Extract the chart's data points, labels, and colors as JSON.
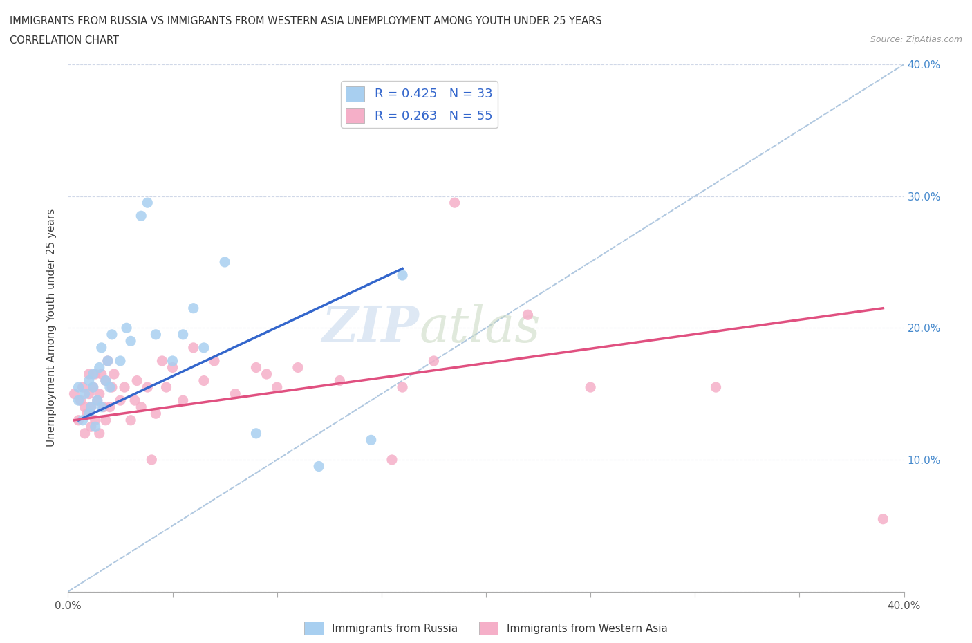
{
  "title_line1": "IMMIGRANTS FROM RUSSIA VS IMMIGRANTS FROM WESTERN ASIA UNEMPLOYMENT AMONG YOUTH UNDER 25 YEARS",
  "title_line2": "CORRELATION CHART",
  "source_text": "Source: ZipAtlas.com",
  "ylabel": "Unemployment Among Youth under 25 years",
  "xlim": [
    0.0,
    0.4
  ],
  "ylim": [
    0.0,
    0.4
  ],
  "xticks": [
    0.0,
    0.05,
    0.1,
    0.15,
    0.2,
    0.25,
    0.3,
    0.35,
    0.4
  ],
  "yticks": [
    0.0,
    0.1,
    0.2,
    0.3,
    0.4
  ],
  "yticklabels_right": [
    "",
    "10.0%",
    "20.0%",
    "30.0%",
    "40.0%"
  ],
  "color_russia": "#a8cff0",
  "color_western_asia": "#f5afc8",
  "color_russia_line": "#3366cc",
  "color_western_asia_line": "#e05080",
  "color_diag_line": "#b0c8e0",
  "R_russia": 0.425,
  "N_russia": 33,
  "R_western_asia": 0.263,
  "N_western_asia": 55,
  "legend_label_russia": "Immigrants from Russia",
  "legend_label_western_asia": "Immigrants from Western Asia",
  "watermark": "ZIPatlas",
  "russia_scatter_x": [
    0.005,
    0.005,
    0.007,
    0.008,
    0.01,
    0.01,
    0.011,
    0.012,
    0.012,
    0.013,
    0.014,
    0.015,
    0.016,
    0.016,
    0.018,
    0.019,
    0.02,
    0.021,
    0.025,
    0.028,
    0.03,
    0.035,
    0.038,
    0.042,
    0.05,
    0.055,
    0.06,
    0.065,
    0.075,
    0.09,
    0.12,
    0.145,
    0.16
  ],
  "russia_scatter_y": [
    0.145,
    0.155,
    0.13,
    0.15,
    0.16,
    0.135,
    0.14,
    0.155,
    0.165,
    0.125,
    0.145,
    0.17,
    0.14,
    0.185,
    0.16,
    0.175,
    0.155,
    0.195,
    0.175,
    0.2,
    0.19,
    0.285,
    0.295,
    0.195,
    0.175,
    0.195,
    0.215,
    0.185,
    0.25,
    0.12,
    0.095,
    0.115,
    0.24
  ],
  "western_asia_scatter_x": [
    0.003,
    0.005,
    0.006,
    0.007,
    0.008,
    0.008,
    0.009,
    0.01,
    0.01,
    0.011,
    0.011,
    0.012,
    0.013,
    0.013,
    0.014,
    0.015,
    0.015,
    0.016,
    0.017,
    0.018,
    0.018,
    0.019,
    0.02,
    0.021,
    0.022,
    0.025,
    0.027,
    0.03,
    0.032,
    0.033,
    0.035,
    0.038,
    0.04,
    0.042,
    0.045,
    0.047,
    0.05,
    0.055,
    0.06,
    0.065,
    0.07,
    0.08,
    0.09,
    0.095,
    0.1,
    0.11,
    0.13,
    0.155,
    0.16,
    0.175,
    0.185,
    0.22,
    0.25,
    0.31,
    0.39
  ],
  "western_asia_scatter_y": [
    0.15,
    0.13,
    0.145,
    0.155,
    0.12,
    0.14,
    0.135,
    0.15,
    0.165,
    0.125,
    0.14,
    0.155,
    0.13,
    0.165,
    0.145,
    0.12,
    0.15,
    0.165,
    0.14,
    0.13,
    0.16,
    0.175,
    0.14,
    0.155,
    0.165,
    0.145,
    0.155,
    0.13,
    0.145,
    0.16,
    0.14,
    0.155,
    0.1,
    0.135,
    0.175,
    0.155,
    0.17,
    0.145,
    0.185,
    0.16,
    0.175,
    0.15,
    0.17,
    0.165,
    0.155,
    0.17,
    0.16,
    0.1,
    0.155,
    0.175,
    0.295,
    0.21,
    0.155,
    0.155,
    0.055
  ],
  "russia_line_x": [
    0.005,
    0.16
  ],
  "russia_line_y": [
    0.13,
    0.245
  ],
  "western_asia_line_x": [
    0.003,
    0.39
  ],
  "western_asia_line_y": [
    0.13,
    0.215
  ]
}
